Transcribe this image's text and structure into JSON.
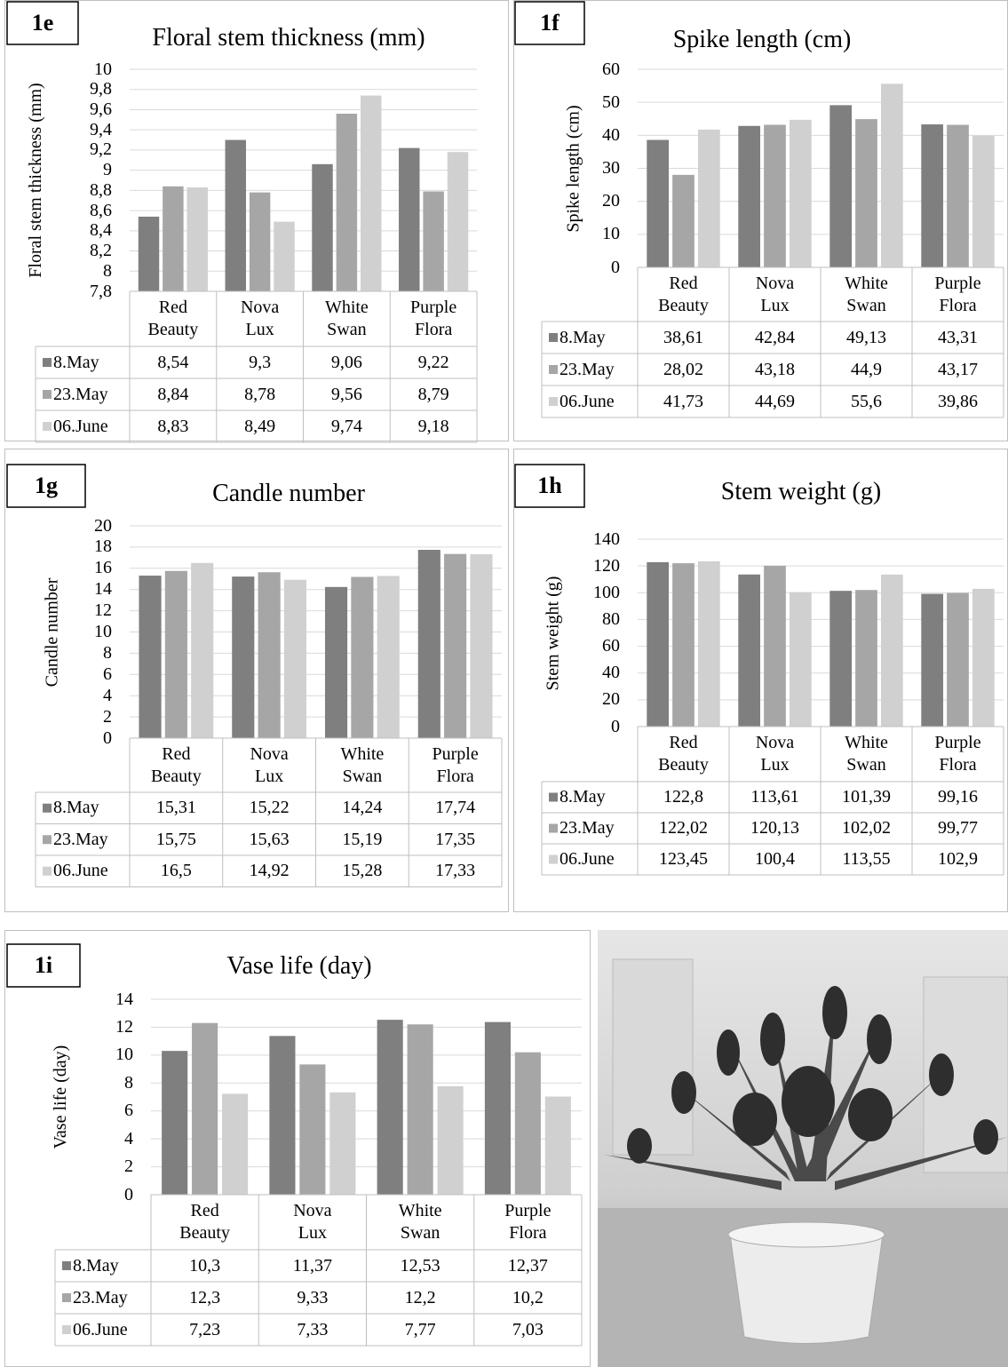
{
  "chart_data": [
    {
      "type": "bar",
      "label": "1e",
      "title": "Floral stem thickness (mm)",
      "y_label": "Floral stem thickness (mm)",
      "categories": [
        "Red Beauty",
        "Nova Lux",
        "White Swan",
        "Purple Flora"
      ],
      "series": [
        {
          "name": "8.May",
          "color": "#7f7f7f",
          "values": [
            8.54,
            9.3,
            9.06,
            9.22
          ],
          "value_labels": [
            "8,54",
            "9,3",
            "9,06",
            "9,22"
          ]
        },
        {
          "name": "23.May",
          "color": "#a6a6a6",
          "values": [
            8.84,
            8.78,
            9.56,
            8.79
          ],
          "value_labels": [
            "8,84",
            "8,78",
            "9,56",
            "8,79"
          ]
        },
        {
          "name": "06.June",
          "color": "#d0d0d0",
          "values": [
            8.83,
            8.49,
            9.74,
            9.18
          ],
          "value_labels": [
            "8,83",
            "8,49",
            "9,74",
            "9,18"
          ]
        }
      ],
      "ylim": [
        7.8,
        10
      ],
      "yticks": [
        {
          "value": 7.8,
          "label": "7,8"
        },
        8,
        {
          "value": 8.2,
          "label": "8,2"
        },
        {
          "value": 8.4,
          "label": "8,4"
        },
        {
          "value": 8.6,
          "label": "8,6"
        },
        {
          "value": 8.8,
          "label": "8,8"
        },
        9,
        {
          "value": 9.2,
          "label": "9,2"
        },
        {
          "value": 9.4,
          "label": "9,4"
        },
        {
          "value": 9.6,
          "label": "9,6"
        },
        {
          "value": 9.8,
          "label": "9,8"
        },
        10
      ],
      "grid": true
    },
    {
      "type": "bar",
      "label": "1f",
      "title": "Spike length (cm)",
      "y_label": "Spike length (cm)",
      "categories": [
        "Red Beauty",
        "Nova Lux",
        "White Swan",
        "Purple Flora"
      ],
      "series": [
        {
          "name": "8.May",
          "color": "#7f7f7f",
          "values": [
            38.61,
            42.84,
            49.13,
            43.31
          ],
          "value_labels": [
            "38,61",
            "42,84",
            "49,13",
            "43,31"
          ]
        },
        {
          "name": "23.May",
          "color": "#a6a6a6",
          "values": [
            28.02,
            43.18,
            44.9,
            43.17
          ],
          "value_labels": [
            "28,02",
            "43,18",
            "44,9",
            "43,17"
          ]
        },
        {
          "name": "06.June",
          "color": "#d0d0d0",
          "values": [
            41.73,
            44.69,
            55.6,
            39.86
          ],
          "value_labels": [
            "41,73",
            "44,69",
            "55,6",
            "39,86"
          ]
        }
      ],
      "ylim": [
        0,
        60
      ],
      "yticks": [
        0,
        10,
        20,
        30,
        40,
        50,
        60
      ],
      "grid": true
    },
    {
      "type": "bar",
      "label": "1g",
      "title": "Candle number",
      "y_label": "Candle number",
      "categories": [
        "Red Beauty",
        "Nova Lux",
        "White Swan",
        "Purple Flora"
      ],
      "series": [
        {
          "name": "8.May",
          "color": "#7f7f7f",
          "values": [
            15.31,
            15.22,
            14.24,
            17.74
          ],
          "value_labels": [
            "15,31",
            "15,22",
            "14,24",
            "17,74"
          ]
        },
        {
          "name": "23.May",
          "color": "#a6a6a6",
          "values": [
            15.75,
            15.63,
            15.19,
            17.35
          ],
          "value_labels": [
            "15,75",
            "15,63",
            "15,19",
            "17,35"
          ]
        },
        {
          "name": "06.June",
          "color": "#d0d0d0",
          "values": [
            16.5,
            14.92,
            15.28,
            17.33
          ],
          "value_labels": [
            "16,5",
            "14,92",
            "15,28",
            "17,33"
          ]
        }
      ],
      "ylim": [
        0,
        20
      ],
      "yticks": [
        0,
        2,
        4,
        6,
        8,
        10,
        12,
        14,
        16,
        18,
        20
      ],
      "grid": true
    },
    {
      "type": "bar",
      "label": "1h",
      "title": "Stem weight (g)",
      "y_label": "Stem weight (g)",
      "categories": [
        "Red Beauty",
        "Nova Lux",
        "White Swan",
        "Purple Flora"
      ],
      "series": [
        {
          "name": "8.May",
          "color": "#7f7f7f",
          "values": [
            122.8,
            113.61,
            101.39,
            99.16
          ],
          "value_labels": [
            "122,8",
            "113,61",
            "101,39",
            "99,16"
          ]
        },
        {
          "name": "23.May",
          "color": "#a6a6a6",
          "values": [
            122.02,
            120.13,
            102.02,
            99.77
          ],
          "value_labels": [
            "122,02",
            "120,13",
            "102,02",
            "99,77"
          ]
        },
        {
          "name": "06.June",
          "color": "#d0d0d0",
          "values": [
            123.45,
            100.4,
            113.55,
            102.9
          ],
          "value_labels": [
            "123,45",
            "100,4",
            "113,55",
            "102,9"
          ]
        }
      ],
      "ylim": [
        0,
        140
      ],
      "yticks": [
        0,
        20,
        40,
        60,
        80,
        100,
        120,
        140
      ],
      "grid": true
    },
    {
      "type": "bar",
      "label": "1i",
      "title": "Vase life (day)",
      "y_label": "Vase life (day)",
      "categories": [
        "Red Beauty",
        "Nova Lux",
        "White Swan",
        "Purple Flora"
      ],
      "series": [
        {
          "name": "8.May",
          "color": "#7f7f7f",
          "values": [
            10.3,
            11.37,
            12.53,
            12.37
          ],
          "value_labels": [
            "10,3",
            "11,37",
            "12,53",
            "12,37"
          ]
        },
        {
          "name": "23.May",
          "color": "#a6a6a6",
          "values": [
            12.3,
            9.33,
            12.2,
            10.2
          ],
          "value_labels": [
            "12,3",
            "9,33",
            "12,2",
            "10,2"
          ]
        },
        {
          "name": "06.June",
          "color": "#d0d0d0",
          "values": [
            7.23,
            7.33,
            7.77,
            7.03
          ],
          "value_labels": [
            "7,23",
            "7,33",
            "7,77",
            "7,03"
          ]
        }
      ],
      "ylim": [
        0,
        14
      ],
      "yticks": [
        0,
        2,
        4,
        6,
        8,
        10,
        12,
        14
      ],
      "grid": true
    }
  ]
}
